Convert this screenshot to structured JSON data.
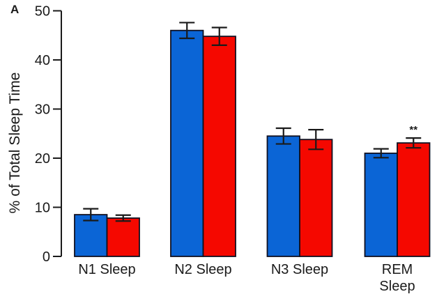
{
  "panel_label": "A",
  "chart_data": {
    "type": "bar",
    "title": "",
    "categories": [
      "N1 Sleep",
      "N2 Sleep",
      "N3 Sleep",
      "REM\nSleep"
    ],
    "series": [
      {
        "name": "blue-group",
        "color": "#0b65d6",
        "values": [
          8.5,
          46.0,
          24.5,
          21.0
        ],
        "errors": [
          1.2,
          1.6,
          1.6,
          0.9
        ]
      },
      {
        "name": "red-group",
        "color": "#f50800",
        "values": [
          7.8,
          44.8,
          23.8,
          23.1
        ],
        "errors": [
          0.6,
          1.8,
          2.0,
          1.0
        ]
      }
    ],
    "annotations": [
      {
        "text": "**",
        "category_index": 3,
        "series_index": 1
      }
    ],
    "ylabel": "% of Total Sleep Time",
    "xlabel": "",
    "ylim": [
      0,
      50
    ],
    "yticks": [
      0,
      10,
      20,
      30,
      40,
      50
    ],
    "grid": false,
    "legend_position": "none",
    "bar_border_color": "#101020",
    "axis_color": "#1a1a1a",
    "error_bar_color": "#1a1a1a"
  }
}
